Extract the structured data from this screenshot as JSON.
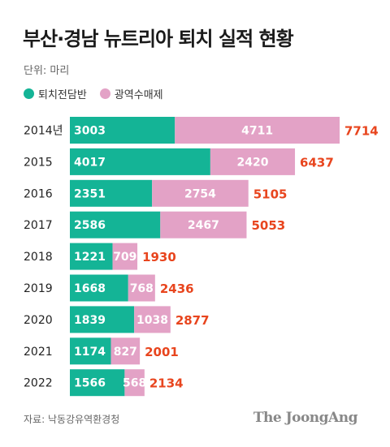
{
  "title": "부산·경남 뉴트리아 퇴치 실적 현황",
  "unit": "단위: 마리",
  "source": "자료: 낙동강유역환경청",
  "brand": "The JoongAng",
  "colors": {
    "series1": "#14b496",
    "series2": "#e3a2c6",
    "total": "#e8451e"
  },
  "chart_data": {
    "type": "bar",
    "orientation": "horizontal",
    "stacked": true,
    "categories": [
      "2014년",
      "2015",
      "2016",
      "2017",
      "2018",
      "2019",
      "2020",
      "2021",
      "2022"
    ],
    "series": [
      {
        "name": "퇴치전담반",
        "values": [
          3003,
          4017,
          2351,
          2586,
          1221,
          1668,
          1839,
          1174,
          1566
        ]
      },
      {
        "name": "광역수매제",
        "values": [
          4711,
          2420,
          2754,
          2467,
          709,
          768,
          1038,
          827,
          568
        ]
      }
    ],
    "totals": [
      7714,
      6437,
      5105,
      5053,
      1930,
      2436,
      2877,
      2001,
      2134
    ],
    "legend_position": "top-left",
    "grid": false
  }
}
